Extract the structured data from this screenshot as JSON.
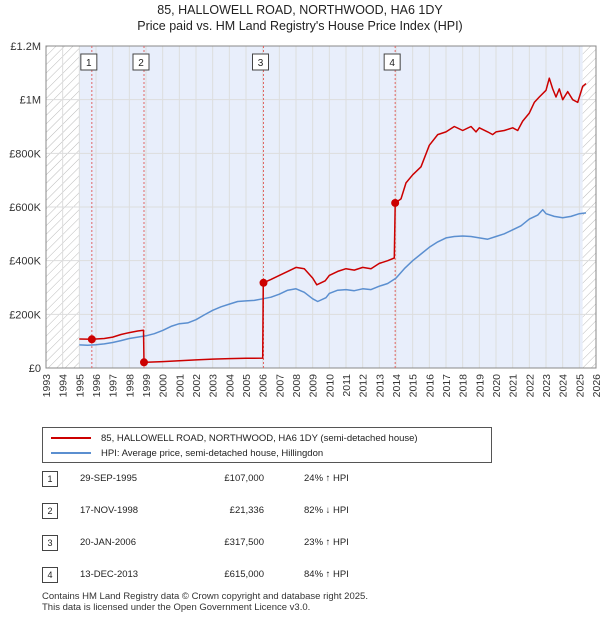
{
  "title": "85, HALLOWELL ROAD, NORTHWOOD, HA6 1DY",
  "subtitle": "Price paid vs. HM Land Registry's House Price Index (HPI)",
  "colors": {
    "price_line": "#cc0000",
    "hpi_line": "#5b8fd0",
    "highlight_band": "#e8eefb",
    "hatch": "#bbbbbb",
    "marker_line": "#e06666"
  },
  "chart_data": {
    "type": "line",
    "ylim": [
      0,
      1200000
    ],
    "xlim": [
      1993,
      2026
    ],
    "y_ticks": [
      {
        "value": 0,
        "label": "£0"
      },
      {
        "value": 200000,
        "label": "£200K"
      },
      {
        "value": 400000,
        "label": "£400K"
      },
      {
        "value": 600000,
        "label": "£600K"
      },
      {
        "value": 800000,
        "label": "£800K"
      },
      {
        "value": 1000000,
        "label": "£1M"
      },
      {
        "value": 1200000,
        "label": "£1.2M"
      }
    ],
    "x_ticks": [
      "1993",
      "1994",
      "1995",
      "1996",
      "1997",
      "1998",
      "1999",
      "2000",
      "2001",
      "2002",
      "2003",
      "2004",
      "2005",
      "2006",
      "2007",
      "2008",
      "2009",
      "2010",
      "2011",
      "2012",
      "2013",
      "2014",
      "2015",
      "2016",
      "2017",
      "2018",
      "2019",
      "2020",
      "2021",
      "2022",
      "2023",
      "2024",
      "2025",
      "2026"
    ],
    "hatch_before": 1995.0,
    "hatch_after": 2025.2,
    "highlight_band": [
      1995.0,
      2025.2
    ],
    "series": [
      {
        "name": "85, HALLOWELL ROAD, NORTHWOOD, HA6 1DY (semi-detached house)",
        "color": "#cc0000",
        "points": [
          [
            1995.0,
            108000
          ],
          [
            1995.75,
            107000
          ],
          [
            1996.0,
            108000
          ],
          [
            1996.5,
            110000
          ],
          [
            1997.0,
            115000
          ],
          [
            1997.5,
            125000
          ],
          [
            1998.0,
            132000
          ],
          [
            1998.5,
            138000
          ],
          [
            1998.85,
            141000
          ],
          [
            1998.88,
            21336
          ],
          [
            1999.0,
            21800
          ],
          [
            2000.0,
            24000
          ],
          [
            2001.0,
            27000
          ],
          [
            2002.0,
            30000
          ],
          [
            2003.0,
            33000
          ],
          [
            2004.0,
            35000
          ],
          [
            2005.0,
            36000
          ],
          [
            2006.0,
            37000
          ],
          [
            2006.04,
            317500
          ],
          [
            2006.5,
            330000
          ],
          [
            2007.0,
            345000
          ],
          [
            2007.5,
            360000
          ],
          [
            2008.0,
            375000
          ],
          [
            2008.5,
            370000
          ],
          [
            2009.0,
            335000
          ],
          [
            2009.25,
            310000
          ],
          [
            2009.75,
            325000
          ],
          [
            2010.0,
            345000
          ],
          [
            2010.5,
            360000
          ],
          [
            2011.0,
            370000
          ],
          [
            2011.5,
            365000
          ],
          [
            2012.0,
            375000
          ],
          [
            2012.5,
            370000
          ],
          [
            2013.0,
            390000
          ],
          [
            2013.5,
            400000
          ],
          [
            2013.9,
            410000
          ],
          [
            2013.95,
            615000
          ],
          [
            2014.3,
            630000
          ],
          [
            2014.6,
            690000
          ],
          [
            2015.0,
            720000
          ],
          [
            2015.5,
            750000
          ],
          [
            2016.0,
            830000
          ],
          [
            2016.5,
            870000
          ],
          [
            2017.0,
            880000
          ],
          [
            2017.5,
            900000
          ],
          [
            2018.0,
            885000
          ],
          [
            2018.5,
            900000
          ],
          [
            2018.8,
            880000
          ],
          [
            2019.0,
            895000
          ],
          [
            2019.5,
            880000
          ],
          [
            2019.8,
            870000
          ],
          [
            2020.0,
            880000
          ],
          [
            2020.5,
            885000
          ],
          [
            2021.0,
            895000
          ],
          [
            2021.3,
            885000
          ],
          [
            2021.6,
            920000
          ],
          [
            2022.0,
            950000
          ],
          [
            2022.3,
            990000
          ],
          [
            2022.6,
            1010000
          ],
          [
            2023.0,
            1035000
          ],
          [
            2023.2,
            1080000
          ],
          [
            2023.4,
            1040000
          ],
          [
            2023.6,
            1010000
          ],
          [
            2023.8,
            1040000
          ],
          [
            2024.0,
            1000000
          ],
          [
            2024.3,
            1030000
          ],
          [
            2024.6,
            1000000
          ],
          [
            2024.9,
            990000
          ],
          [
            2025.2,
            1050000
          ],
          [
            2025.4,
            1060000
          ]
        ]
      },
      {
        "name": "HPI: Average price, semi-detached house, Hillingdon",
        "color": "#5b8fd0",
        "points": [
          [
            1995.0,
            86000
          ],
          [
            1995.5,
            85000
          ],
          [
            1996.0,
            87000
          ],
          [
            1996.5,
            90000
          ],
          [
            1997.0,
            95000
          ],
          [
            1997.5,
            102000
          ],
          [
            1998.0,
            110000
          ],
          [
            1998.5,
            115000
          ],
          [
            1999.0,
            120000
          ],
          [
            1999.5,
            128000
          ],
          [
            2000.0,
            140000
          ],
          [
            2000.5,
            155000
          ],
          [
            2001.0,
            165000
          ],
          [
            2001.5,
            168000
          ],
          [
            2002.0,
            180000
          ],
          [
            2002.5,
            198000
          ],
          [
            2003.0,
            215000
          ],
          [
            2003.5,
            228000
          ],
          [
            2004.0,
            238000
          ],
          [
            2004.5,
            248000
          ],
          [
            2005.0,
            250000
          ],
          [
            2005.5,
            252000
          ],
          [
            2006.0,
            258000
          ],
          [
            2006.5,
            264000
          ],
          [
            2007.0,
            275000
          ],
          [
            2007.5,
            290000
          ],
          [
            2008.0,
            295000
          ],
          [
            2008.5,
            282000
          ],
          [
            2009.0,
            258000
          ],
          [
            2009.3,
            248000
          ],
          [
            2009.8,
            262000
          ],
          [
            2010.0,
            278000
          ],
          [
            2010.5,
            290000
          ],
          [
            2011.0,
            292000
          ],
          [
            2011.5,
            288000
          ],
          [
            2012.0,
            295000
          ],
          [
            2012.5,
            292000
          ],
          [
            2013.0,
            305000
          ],
          [
            2013.5,
            315000
          ],
          [
            2014.0,
            335000
          ],
          [
            2014.5,
            370000
          ],
          [
            2015.0,
            400000
          ],
          [
            2015.5,
            425000
          ],
          [
            2016.0,
            450000
          ],
          [
            2016.5,
            470000
          ],
          [
            2017.0,
            485000
          ],
          [
            2017.5,
            490000
          ],
          [
            2018.0,
            492000
          ],
          [
            2018.5,
            490000
          ],
          [
            2019.0,
            485000
          ],
          [
            2019.5,
            480000
          ],
          [
            2020.0,
            490000
          ],
          [
            2020.5,
            500000
          ],
          [
            2021.0,
            515000
          ],
          [
            2021.5,
            530000
          ],
          [
            2022.0,
            555000
          ],
          [
            2022.5,
            570000
          ],
          [
            2022.8,
            590000
          ],
          [
            2023.0,
            575000
          ],
          [
            2023.5,
            565000
          ],
          [
            2024.0,
            560000
          ],
          [
            2024.5,
            565000
          ],
          [
            2025.0,
            575000
          ],
          [
            2025.4,
            578000
          ]
        ]
      }
    ],
    "sales": [
      {
        "num": "1",
        "x": 1995.75,
        "y": 107000
      },
      {
        "num": "2",
        "x": 1998.88,
        "y": 21336
      },
      {
        "num": "3",
        "x": 2006.05,
        "y": 317500
      },
      {
        "num": "4",
        "x": 2013.95,
        "y": 615000
      }
    ]
  },
  "legend": {
    "price_label": "85, HALLOWELL ROAD, NORTHWOOD, HA6 1DY (semi-detached house)",
    "hpi_label": "HPI: Average price, semi-detached house, Hillingdon"
  },
  "sales_table": [
    {
      "num": "1",
      "date": "29-SEP-1995",
      "price": "£107,000",
      "hpi": "24% ↑ HPI"
    },
    {
      "num": "2",
      "date": "17-NOV-1998",
      "price": "£21,336",
      "hpi": "82% ↓ HPI"
    },
    {
      "num": "3",
      "date": "20-JAN-2006",
      "price": "£317,500",
      "hpi": "23% ↑ HPI"
    },
    {
      "num": "4",
      "date": "13-DEC-2013",
      "price": "£615,000",
      "hpi": "84% ↑ HPI"
    }
  ],
  "footer": {
    "line1": "Contains HM Land Registry data © Crown copyright and database right 2025.",
    "line2": "This data is licensed under the Open Government Licence v3.0."
  }
}
